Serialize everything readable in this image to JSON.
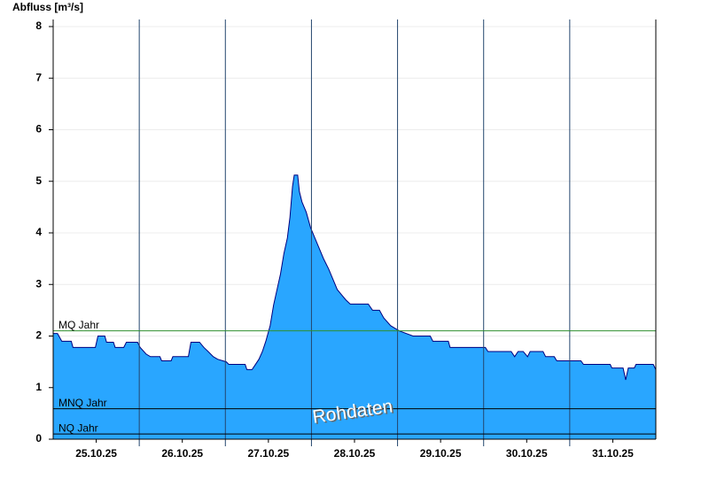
{
  "chart_data": {
    "type": "area",
    "y_label": "Abfluss [m³/s]",
    "annotation": "Rohdaten",
    "color": "#29a6ff",
    "line_color": "#00007f",
    "grid": true,
    "ylim": [
      0,
      8
    ],
    "yticks": [
      0,
      1,
      2,
      3,
      4,
      5,
      6,
      7,
      8
    ],
    "xlim": [
      0,
      7
    ],
    "xticks": [
      {
        "value": 0.5,
        "label": "25.10.25"
      },
      {
        "value": 1.5,
        "label": "26.10.25"
      },
      {
        "value": 2.5,
        "label": "27.10.25"
      },
      {
        "value": 3.5,
        "label": "28.10.25"
      },
      {
        "value": 4.5,
        "label": "29.10.25"
      },
      {
        "value": 5.5,
        "label": "30.10.25"
      },
      {
        "value": 6.5,
        "label": "31.10.25"
      }
    ],
    "day_lines": [
      1,
      2,
      3,
      4,
      5,
      6
    ],
    "reference_lines": [
      {
        "label": "MQ Jahr",
        "value": 2.1,
        "color": "#2f8f2f"
      },
      {
        "label": "MNQ Jahr",
        "value": 0.59,
        "color": "#000000"
      },
      {
        "label": "NQ Jahr",
        "value": 0.1,
        "color": "#000000"
      }
    ],
    "x": [
      0,
      0.05,
      0.1,
      0.21,
      0.23,
      0.49,
      0.52,
      0.6,
      0.62,
      0.7,
      0.72,
      0.82,
      0.85,
      0.98,
      1.01,
      1.08,
      1.13,
      1.24,
      1.26,
      1.37,
      1.39,
      1.57,
      1.6,
      1.7,
      1.75,
      1.8,
      1.86,
      1.91,
      2.01,
      2.04,
      2.23,
      2.25,
      2.31,
      2.35,
      2.39,
      2.43,
      2.47,
      2.52,
      2.56,
      2.6,
      2.64,
      2.68,
      2.72,
      2.75,
      2.78,
      2.8,
      2.84,
      2.86,
      2.89,
      2.94,
      2.99,
      3.04,
      3.09,
      3.14,
      3.2,
      3.25,
      3.3,
      3.35,
      3.4,
      3.45,
      3.66,
      3.71,
      3.79,
      3.84,
      3.92,
      4.02,
      4.18,
      4.38,
      4.41,
      4.59,
      4.61,
      5.02,
      5.05,
      5.32,
      5.36,
      5.4,
      5.46,
      5.51,
      5.54,
      5.69,
      5.72,
      5.82,
      5.85,
      6.13,
      6.16,
      6.47,
      6.49,
      6.62,
      6.65,
      6.68,
      6.75,
      6.77,
      6.97,
      7.0
    ],
    "values": [
      2.05,
      2.05,
      1.9,
      1.9,
      1.78,
      1.78,
      2.0,
      2.0,
      1.88,
      1.88,
      1.78,
      1.78,
      1.88,
      1.88,
      1.78,
      1.65,
      1.6,
      1.6,
      1.52,
      1.52,
      1.6,
      1.6,
      1.88,
      1.88,
      1.78,
      1.7,
      1.6,
      1.55,
      1.5,
      1.45,
      1.45,
      1.35,
      1.35,
      1.45,
      1.55,
      1.7,
      1.9,
      2.2,
      2.6,
      2.9,
      3.2,
      3.6,
      3.9,
      4.3,
      4.9,
      5.12,
      5.12,
      4.8,
      4.6,
      4.4,
      4.1,
      3.9,
      3.7,
      3.5,
      3.3,
      3.1,
      2.9,
      2.8,
      2.7,
      2.62,
      2.62,
      2.5,
      2.5,
      2.35,
      2.2,
      2.1,
      2.0,
      2.0,
      1.9,
      1.9,
      1.78,
      1.78,
      1.7,
      1.7,
      1.6,
      1.7,
      1.7,
      1.6,
      1.7,
      1.7,
      1.6,
      1.6,
      1.52,
      1.52,
      1.45,
      1.45,
      1.38,
      1.38,
      1.15,
      1.38,
      1.38,
      1.45,
      1.45,
      1.35
    ]
  }
}
